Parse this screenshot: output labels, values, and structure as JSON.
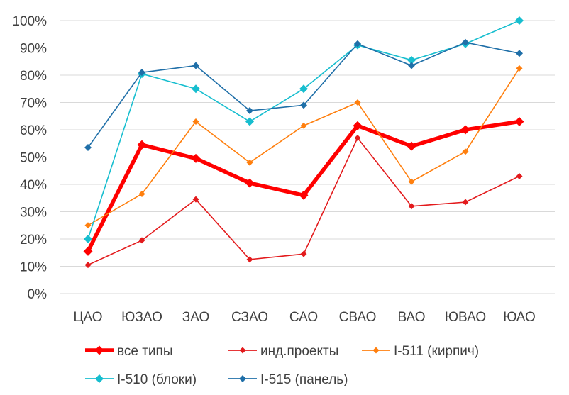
{
  "chart_data": {
    "type": "line",
    "title": "",
    "xlabel": "",
    "ylabel": "",
    "ylim": [
      0,
      100
    ],
    "y_ticks": [
      "0%",
      "10%",
      "20%",
      "30%",
      "40%",
      "50%",
      "60%",
      "70%",
      "80%",
      "90%",
      "100%"
    ],
    "grid": "horizontal",
    "legend_position": "bottom",
    "categories": [
      "ЦАО",
      "ЮЗАО",
      "ЗАО",
      "СЗАО",
      "САО",
      "СВАО",
      "ВАО",
      "ЮВАО",
      "ЮАО"
    ],
    "series": [
      {
        "name": "все типы",
        "color": "#ff0000",
        "values": [
          15.5,
          54.5,
          49.5,
          40.5,
          36,
          61.5,
          54,
          60,
          63
        ]
      },
      {
        "name": "инд.проекты",
        "color": "#e31a1c",
        "values": [
          10.5,
          19.5,
          34.5,
          12.5,
          14.5,
          57,
          32,
          33.5,
          43
        ]
      },
      {
        "name": "I-511 (кирпич)",
        "color": "#ff7f0e",
        "values": [
          25,
          36.5,
          63,
          48,
          61.5,
          70,
          41,
          52,
          82.5
        ]
      },
      {
        "name": "I-510 (блоки)",
        "color": "#17becf",
        "values": [
          20,
          80.5,
          75,
          63,
          75,
          91,
          85.5,
          91.5,
          100
        ]
      },
      {
        "name": "I-515 (панель)",
        "color": "#1f6fa8",
        "values": [
          53.5,
          81,
          83.5,
          67,
          69,
          91.5,
          83.5,
          92,
          88
        ]
      }
    ]
  }
}
